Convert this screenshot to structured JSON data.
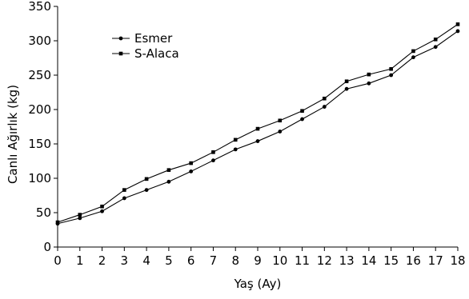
{
  "chart_data": {
    "type": "line",
    "title": "",
    "xlabel": "Yaş (Ay)",
    "ylabel": "Canlı Ağırlık (kg)",
    "x": [
      0,
      1,
      2,
      3,
      4,
      5,
      6,
      7,
      8,
      9,
      10,
      11,
      12,
      13,
      14,
      15,
      16,
      17,
      18
    ],
    "xlim": [
      0,
      18
    ],
    "ylim": [
      0,
      350
    ],
    "xticks": [
      "0",
      "1",
      "2",
      "3",
      "4",
      "5",
      "6",
      "7",
      "8",
      "9",
      "10",
      "11",
      "12",
      "13",
      "14",
      "15",
      "16",
      "17",
      "18"
    ],
    "yticks": [
      "0",
      "50",
      "100",
      "150",
      "200",
      "250",
      "300",
      "350"
    ],
    "grid": false,
    "legend_position": "top-left",
    "series": [
      {
        "name": "Esmer",
        "marker": "circle",
        "color": "#000000",
        "values": [
          34,
          42,
          52,
          71,
          83,
          95,
          110,
          126,
          142,
          154,
          168,
          186,
          204,
          230,
          238,
          250,
          276,
          291,
          314
        ]
      },
      {
        "name": "S-Alaca",
        "marker": "square",
        "color": "#000000",
        "values": [
          36,
          47,
          59,
          83,
          99,
          112,
          122,
          138,
          156,
          172,
          184,
          198,
          216,
          241,
          251,
          259,
          285,
          302,
          324
        ]
      }
    ]
  }
}
